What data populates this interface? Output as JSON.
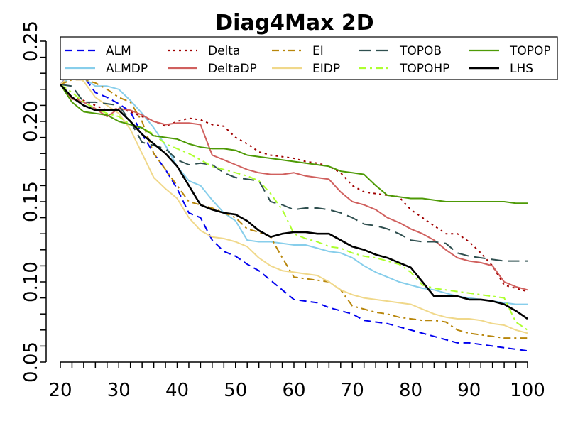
{
  "chart_data": {
    "type": "line",
    "title": "Diag4Max 2D",
    "xlabel": "",
    "ylabel": "",
    "xlim": [
      20,
      100
    ],
    "ylim": [
      0.05,
      0.25
    ],
    "x_ticks": [
      "20",
      "30",
      "40",
      "50",
      "60",
      "70",
      "80",
      "90",
      "100"
    ],
    "y_ticks": [
      "0.05",
      "0.10",
      "0.15",
      "0.20",
      "0.25"
    ],
    "grid": false,
    "legend_position": "top",
    "series": [
      {
        "name": "ALM",
        "color": "#0000ee",
        "dash": "dashed",
        "x": [
          20,
          22,
          24,
          26,
          28,
          30,
          32,
          34,
          36,
          38,
          40,
          42,
          44,
          46,
          48,
          50,
          52,
          54,
          56,
          58,
          60,
          62,
          64,
          66,
          68,
          70,
          72,
          74,
          76,
          78,
          80,
          82,
          84,
          86,
          88,
          90,
          92,
          94,
          96,
          98,
          100
        ],
        "y": [
          0.223,
          0.231,
          0.228,
          0.218,
          0.215,
          0.211,
          0.206,
          0.192,
          0.18,
          0.17,
          0.158,
          0.143,
          0.14,
          0.126,
          0.119,
          0.116,
          0.111,
          0.107,
          0.101,
          0.095,
          0.089,
          0.088,
          0.087,
          0.084,
          0.082,
          0.08,
          0.076,
          0.075,
          0.074,
          0.072,
          0.07,
          0.068,
          0.066,
          0.064,
          0.062,
          0.062,
          0.061,
          0.06,
          0.059,
          0.058,
          0.057
        ]
      },
      {
        "name": "ALMDP",
        "color": "#87ceeb",
        "dash": "solid",
        "x": [
          20,
          22,
          24,
          26,
          28,
          30,
          32,
          34,
          36,
          38,
          40,
          42,
          44,
          46,
          48,
          50,
          52,
          54,
          56,
          58,
          60,
          62,
          64,
          66,
          68,
          70,
          72,
          74,
          76,
          78,
          80,
          82,
          84,
          86,
          88,
          90,
          92,
          94,
          96,
          98,
          100
        ],
        "y": [
          0.223,
          0.228,
          0.227,
          0.222,
          0.222,
          0.22,
          0.213,
          0.205,
          0.196,
          0.185,
          0.172,
          0.163,
          0.16,
          0.151,
          0.143,
          0.138,
          0.126,
          0.125,
          0.125,
          0.124,
          0.123,
          0.123,
          0.121,
          0.119,
          0.118,
          0.115,
          0.11,
          0.106,
          0.103,
          0.1,
          0.098,
          0.096,
          0.095,
          0.093,
          0.091,
          0.09,
          0.089,
          0.088,
          0.087,
          0.086,
          0.086
        ]
      },
      {
        "name": "Delta",
        "color": "#a00000",
        "dash": "dotted",
        "x": [
          20,
          22,
          24,
          26,
          28,
          30,
          32,
          34,
          36,
          38,
          40,
          42,
          44,
          46,
          48,
          50,
          52,
          54,
          56,
          58,
          60,
          62,
          64,
          66,
          68,
          70,
          72,
          74,
          76,
          78,
          80,
          82,
          84,
          86,
          88,
          90,
          92,
          94,
          96,
          98,
          100
        ],
        "y": [
          0.223,
          0.215,
          0.213,
          0.21,
          0.207,
          0.208,
          0.206,
          0.203,
          0.2,
          0.197,
          0.2,
          0.202,
          0.201,
          0.198,
          0.197,
          0.19,
          0.186,
          0.181,
          0.179,
          0.178,
          0.177,
          0.175,
          0.174,
          0.172,
          0.168,
          0.16,
          0.156,
          0.155,
          0.154,
          0.153,
          0.145,
          0.14,
          0.135,
          0.13,
          0.13,
          0.125,
          0.118,
          0.11,
          0.098,
          0.096,
          0.094
        ]
      },
      {
        "name": "DeltaDP",
        "color": "#d0605e",
        "dash": "solid",
        "x": [
          20,
          22,
          24,
          26,
          28,
          30,
          32,
          34,
          36,
          38,
          40,
          42,
          44,
          46,
          48,
          50,
          52,
          54,
          56,
          58,
          60,
          62,
          64,
          66,
          68,
          70,
          72,
          74,
          76,
          78,
          80,
          82,
          84,
          86,
          88,
          90,
          92,
          94,
          96,
          98,
          100
        ],
        "y": [
          0.223,
          0.214,
          0.212,
          0.208,
          0.203,
          0.208,
          0.207,
          0.204,
          0.2,
          0.198,
          0.199,
          0.199,
          0.198,
          0.179,
          0.176,
          0.173,
          0.17,
          0.168,
          0.167,
          0.167,
          0.168,
          0.166,
          0.165,
          0.164,
          0.156,
          0.15,
          0.148,
          0.145,
          0.14,
          0.137,
          0.133,
          0.13,
          0.126,
          0.12,
          0.115,
          0.113,
          0.112,
          0.11,
          0.1,
          0.097,
          0.095
        ]
      },
      {
        "name": "EI",
        "color": "#b8860b",
        "dash": "dashdot",
        "x": [
          20,
          22,
          24,
          26,
          28,
          30,
          32,
          34,
          36,
          38,
          40,
          42,
          44,
          46,
          48,
          50,
          52,
          54,
          56,
          58,
          60,
          62,
          64,
          66,
          68,
          70,
          72,
          74,
          76,
          78,
          80,
          82,
          84,
          86,
          88,
          90,
          92,
          94,
          96,
          98,
          100
        ],
        "y": [
          0.223,
          0.226,
          0.226,
          0.224,
          0.22,
          0.215,
          0.212,
          0.2,
          0.18,
          0.17,
          0.16,
          0.15,
          0.148,
          0.146,
          0.143,
          0.14,
          0.133,
          0.131,
          0.128,
          0.115,
          0.103,
          0.102,
          0.101,
          0.1,
          0.095,
          0.085,
          0.083,
          0.081,
          0.08,
          0.078,
          0.077,
          0.076,
          0.076,
          0.075,
          0.07,
          0.068,
          0.067,
          0.066,
          0.065,
          0.065,
          0.065
        ]
      },
      {
        "name": "EIDP",
        "color": "#f0d88a",
        "dash": "solid",
        "x": [
          20,
          22,
          24,
          26,
          28,
          30,
          32,
          34,
          36,
          38,
          40,
          42,
          44,
          46,
          48,
          50,
          52,
          54,
          56,
          58,
          60,
          62,
          64,
          66,
          68,
          70,
          72,
          74,
          76,
          78,
          80,
          82,
          84,
          86,
          88,
          90,
          92,
          94,
          96,
          98,
          100
        ],
        "y": [
          0.223,
          0.23,
          0.225,
          0.215,
          0.21,
          0.205,
          0.195,
          0.18,
          0.165,
          0.158,
          0.152,
          0.14,
          0.132,
          0.128,
          0.127,
          0.125,
          0.122,
          0.115,
          0.11,
          0.107,
          0.106,
          0.105,
          0.104,
          0.1,
          0.095,
          0.092,
          0.09,
          0.089,
          0.088,
          0.087,
          0.086,
          0.083,
          0.08,
          0.078,
          0.077,
          0.077,
          0.076,
          0.074,
          0.073,
          0.07,
          0.068
        ]
      },
      {
        "name": "TOPOB",
        "color": "#2f4f4f",
        "dash": "longdash",
        "x": [
          20,
          22,
          24,
          26,
          28,
          30,
          32,
          34,
          36,
          38,
          40,
          42,
          44,
          46,
          48,
          50,
          52,
          54,
          56,
          58,
          60,
          62,
          64,
          66,
          68,
          70,
          72,
          74,
          76,
          78,
          80,
          82,
          84,
          86,
          88,
          90,
          92,
          94,
          96,
          98,
          100
        ],
        "y": [
          0.223,
          0.222,
          0.212,
          0.212,
          0.211,
          0.21,
          0.2,
          0.187,
          0.185,
          0.183,
          0.176,
          0.173,
          0.174,
          0.173,
          0.168,
          0.165,
          0.164,
          0.163,
          0.15,
          0.148,
          0.145,
          0.146,
          0.146,
          0.145,
          0.143,
          0.14,
          0.136,
          0.135,
          0.133,
          0.13,
          0.126,
          0.125,
          0.125,
          0.124,
          0.118,
          0.116,
          0.115,
          0.114,
          0.113,
          0.113,
          0.113
        ]
      },
      {
        "name": "TOPOHP",
        "color": "#adff2f",
        "dash": "dashdot",
        "x": [
          20,
          22,
          24,
          26,
          28,
          30,
          32,
          34,
          36,
          38,
          40,
          42,
          44,
          46,
          48,
          50,
          52,
          54,
          56,
          58,
          60,
          62,
          64,
          66,
          68,
          70,
          72,
          74,
          76,
          78,
          80,
          82,
          84,
          86,
          88,
          90,
          92,
          94,
          96,
          98,
          100
        ],
        "y": [
          0.223,
          0.218,
          0.212,
          0.208,
          0.205,
          0.203,
          0.198,
          0.196,
          0.192,
          0.186,
          0.183,
          0.18,
          0.176,
          0.172,
          0.17,
          0.168,
          0.166,
          0.163,
          0.155,
          0.145,
          0.13,
          0.127,
          0.125,
          0.122,
          0.121,
          0.118,
          0.116,
          0.115,
          0.113,
          0.111,
          0.106,
          0.098,
          0.096,
          0.095,
          0.094,
          0.093,
          0.092,
          0.091,
          0.09,
          0.075,
          0.07
        ]
      },
      {
        "name": "TOPOP",
        "color": "#4e9a06",
        "dash": "solid",
        "x": [
          20,
          22,
          24,
          26,
          28,
          30,
          32,
          34,
          36,
          38,
          40,
          42,
          44,
          46,
          48,
          50,
          52,
          54,
          56,
          58,
          60,
          62,
          64,
          66,
          68,
          70,
          72,
          74,
          76,
          78,
          80,
          82,
          84,
          86,
          88,
          90,
          92,
          94,
          96,
          98,
          100
        ],
        "y": [
          0.223,
          0.212,
          0.206,
          0.205,
          0.204,
          0.2,
          0.198,
          0.196,
          0.191,
          0.19,
          0.189,
          0.186,
          0.184,
          0.183,
          0.183,
          0.182,
          0.179,
          0.178,
          0.177,
          0.176,
          0.175,
          0.174,
          0.173,
          0.172,
          0.169,
          0.168,
          0.167,
          0.16,
          0.154,
          0.153,
          0.152,
          0.152,
          0.151,
          0.15,
          0.15,
          0.15,
          0.15,
          0.15,
          0.15,
          0.149,
          0.149
        ]
      },
      {
        "name": "LHS",
        "color": "#000000",
        "dash": "solid",
        "x": [
          20,
          22,
          24,
          26,
          28,
          30,
          32,
          34,
          36,
          38,
          40,
          42,
          44,
          46,
          48,
          50,
          52,
          54,
          56,
          58,
          60,
          62,
          64,
          66,
          68,
          70,
          72,
          74,
          76,
          78,
          80,
          82,
          84,
          86,
          88,
          90,
          92,
          94,
          96,
          98,
          100
        ],
        "y": [
          0.223,
          0.215,
          0.21,
          0.207,
          0.207,
          0.207,
          0.2,
          0.192,
          0.186,
          0.18,
          0.172,
          0.16,
          0.148,
          0.145,
          0.143,
          0.142,
          0.138,
          0.132,
          0.128,
          0.13,
          0.131,
          0.131,
          0.13,
          0.13,
          0.126,
          0.122,
          0.12,
          0.117,
          0.115,
          0.112,
          0.109,
          0.1,
          0.091,
          0.091,
          0.091,
          0.089,
          0.089,
          0.088,
          0.086,
          0.082,
          0.077
        ]
      }
    ]
  }
}
